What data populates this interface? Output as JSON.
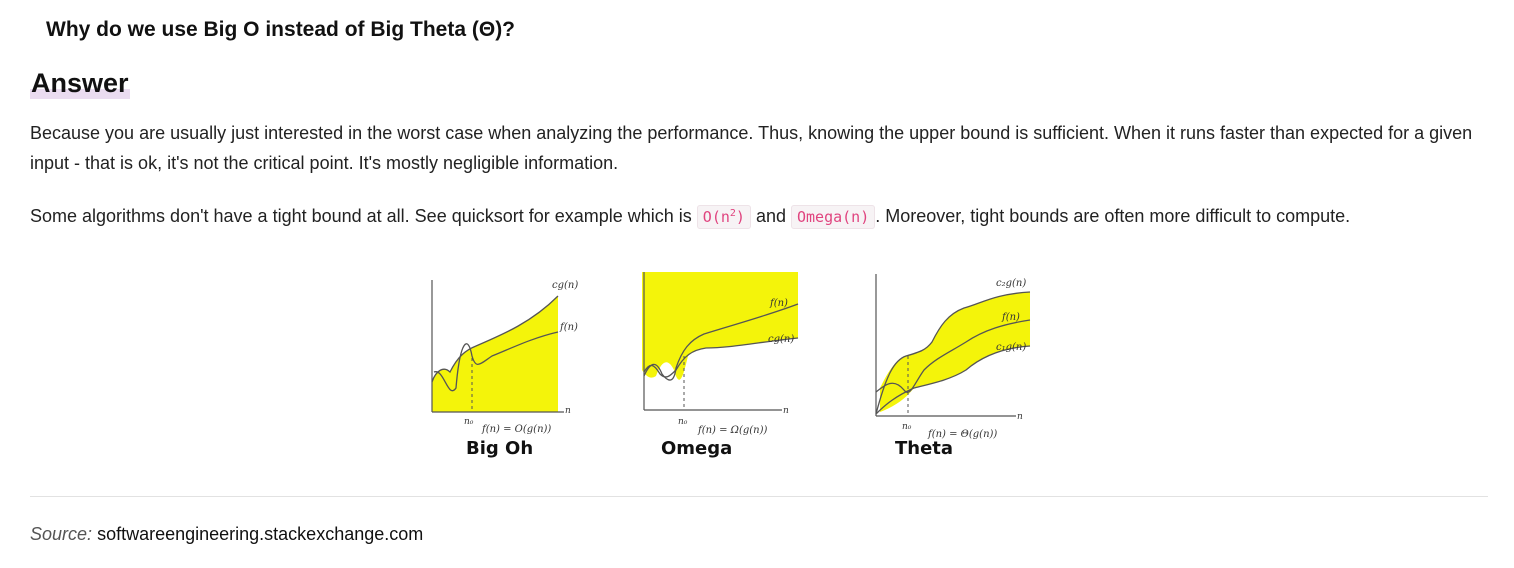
{
  "question": "Why do we use Big O instead of Big Theta (Θ)?",
  "answer_heading": "Answer",
  "paragraph1": "Because you are usually just interested in the worst case when analyzing the performance. Thus, knowing the upper bound is sufficient. When it runs faster than expected for a given input - that is ok, it's not the critical point. It's mostly negligible information.",
  "paragraph2": {
    "before": "Some algorithms don't have a tight bound at all. See quicksort for example which is ",
    "code1_base": "O(n",
    "code1_exp": "2",
    "code1_end": ")",
    "middle": " and ",
    "code2": "Omega(n)",
    "after": ". Moreover, tight bounds are often more difficult to compute."
  },
  "figures": {
    "big_oh": {
      "caption": "Big Oh",
      "upper_label": "cg(n)",
      "lower_label": "f(n)",
      "n0": "n₀",
      "axis": "n",
      "formula": "f(n) = O(g(n))"
    },
    "omega": {
      "caption": "Omega",
      "upper_label": "f(n)",
      "lower_label": "cg(n)",
      "n0": "n₀",
      "axis": "n",
      "formula": "f(n) = Ω(g(n))"
    },
    "theta": {
      "caption": "Theta",
      "upper_label": "c₂g(n)",
      "middle_label": "f(n)",
      "lower_label": "c₁g(n)",
      "n0": "n₀",
      "axis": "n",
      "formula": "f(n) = Θ(g(n))"
    }
  },
  "highlight_color": "#f4f40a",
  "source": {
    "label": "Source:",
    "text": "softwareengineering.stackexchange.com"
  }
}
